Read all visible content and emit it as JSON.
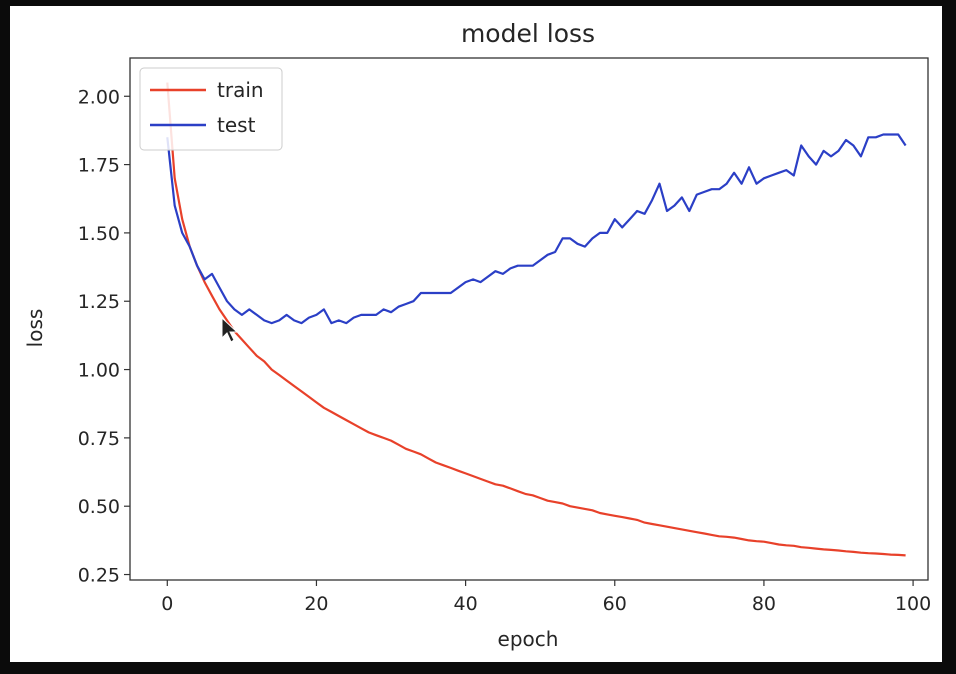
{
  "chart_data": {
    "type": "line",
    "title": "model loss",
    "xlabel": "epoch",
    "ylabel": "loss",
    "xlim": [
      -5,
      102
    ],
    "ylim": [
      0.23,
      2.14
    ],
    "xticks": [
      0,
      20,
      40,
      60,
      80,
      100
    ],
    "yticks": [
      0.25,
      0.5,
      0.75,
      1.0,
      1.25,
      1.5,
      1.75,
      2.0
    ],
    "xtick_labels": [
      "0",
      "20",
      "40",
      "60",
      "80",
      "100"
    ],
    "ytick_labels": [
      "0.25",
      "0.50",
      "0.75",
      "1.00",
      "1.25",
      "1.50",
      "1.75",
      "2.00"
    ],
    "grid": false,
    "legend": "top-left",
    "series": [
      {
        "name": "train",
        "color": "#e8412a",
        "x": [
          0,
          1,
          2,
          3,
          4,
          5,
          6,
          7,
          8,
          9,
          10,
          11,
          12,
          13,
          14,
          15,
          16,
          17,
          18,
          19,
          20,
          21,
          22,
          23,
          24,
          25,
          26,
          27,
          28,
          29,
          30,
          31,
          32,
          33,
          34,
          35,
          36,
          37,
          38,
          39,
          40,
          41,
          42,
          43,
          44,
          45,
          46,
          47,
          48,
          49,
          50,
          51,
          52,
          53,
          54,
          55,
          56,
          57,
          58,
          59,
          60,
          61,
          62,
          63,
          64,
          65,
          66,
          67,
          68,
          69,
          70,
          71,
          72,
          73,
          74,
          75,
          76,
          77,
          78,
          79,
          80,
          81,
          82,
          83,
          84,
          85,
          86,
          87,
          88,
          89,
          90,
          91,
          92,
          93,
          94,
          95,
          96,
          97,
          98,
          99
        ],
        "values": [
          2.05,
          1.7,
          1.55,
          1.45,
          1.38,
          1.32,
          1.27,
          1.22,
          1.18,
          1.14,
          1.11,
          1.08,
          1.05,
          1.03,
          1.0,
          0.98,
          0.96,
          0.94,
          0.92,
          0.9,
          0.88,
          0.86,
          0.845,
          0.83,
          0.815,
          0.8,
          0.785,
          0.77,
          0.76,
          0.75,
          0.74,
          0.725,
          0.71,
          0.7,
          0.69,
          0.675,
          0.66,
          0.65,
          0.64,
          0.63,
          0.62,
          0.61,
          0.6,
          0.59,
          0.58,
          0.575,
          0.565,
          0.555,
          0.545,
          0.54,
          0.53,
          0.52,
          0.515,
          0.51,
          0.5,
          0.495,
          0.49,
          0.485,
          0.475,
          0.47,
          0.465,
          0.46,
          0.455,
          0.45,
          0.44,
          0.435,
          0.43,
          0.425,
          0.42,
          0.415,
          0.41,
          0.405,
          0.4,
          0.395,
          0.39,
          0.388,
          0.385,
          0.38,
          0.375,
          0.372,
          0.37,
          0.365,
          0.36,
          0.357,
          0.355,
          0.35,
          0.348,
          0.345,
          0.342,
          0.34,
          0.338,
          0.335,
          0.333,
          0.33,
          0.328,
          0.327,
          0.325,
          0.323,
          0.322,
          0.32
        ]
      },
      {
        "name": "test",
        "color": "#2b3fc6",
        "x": [
          0,
          1,
          2,
          3,
          4,
          5,
          6,
          7,
          8,
          9,
          10,
          11,
          12,
          13,
          14,
          15,
          16,
          17,
          18,
          19,
          20,
          21,
          22,
          23,
          24,
          25,
          26,
          27,
          28,
          29,
          30,
          31,
          32,
          33,
          34,
          35,
          36,
          37,
          38,
          39,
          40,
          41,
          42,
          43,
          44,
          45,
          46,
          47,
          48,
          49,
          50,
          51,
          52,
          53,
          54,
          55,
          56,
          57,
          58,
          59,
          60,
          61,
          62,
          63,
          64,
          65,
          66,
          67,
          68,
          69,
          70,
          71,
          72,
          73,
          74,
          75,
          76,
          77,
          78,
          79,
          80,
          81,
          82,
          83,
          84,
          85,
          86,
          87,
          88,
          89,
          90,
          91,
          92,
          93,
          94,
          95,
          96,
          97,
          98,
          99
        ],
        "values": [
          1.85,
          1.6,
          1.5,
          1.45,
          1.38,
          1.33,
          1.35,
          1.3,
          1.25,
          1.22,
          1.2,
          1.22,
          1.2,
          1.18,
          1.17,
          1.18,
          1.2,
          1.18,
          1.17,
          1.19,
          1.2,
          1.22,
          1.17,
          1.18,
          1.17,
          1.19,
          1.2,
          1.2,
          1.2,
          1.22,
          1.21,
          1.23,
          1.24,
          1.25,
          1.28,
          1.28,
          1.28,
          1.28,
          1.28,
          1.3,
          1.32,
          1.33,
          1.32,
          1.34,
          1.36,
          1.35,
          1.37,
          1.38,
          1.38,
          1.38,
          1.4,
          1.42,
          1.43,
          1.48,
          1.48,
          1.46,
          1.45,
          1.48,
          1.5,
          1.5,
          1.55,
          1.52,
          1.55,
          1.58,
          1.57,
          1.62,
          1.68,
          1.58,
          1.6,
          1.63,
          1.58,
          1.64,
          1.65,
          1.66,
          1.66,
          1.68,
          1.72,
          1.68,
          1.74,
          1.68,
          1.7,
          1.71,
          1.72,
          1.73,
          1.71,
          1.82,
          1.78,
          1.75,
          1.8,
          1.78,
          1.8,
          1.84,
          1.82,
          1.78,
          1.85,
          1.85,
          1.86,
          1.86,
          1.86,
          1.82
        ]
      }
    ]
  }
}
